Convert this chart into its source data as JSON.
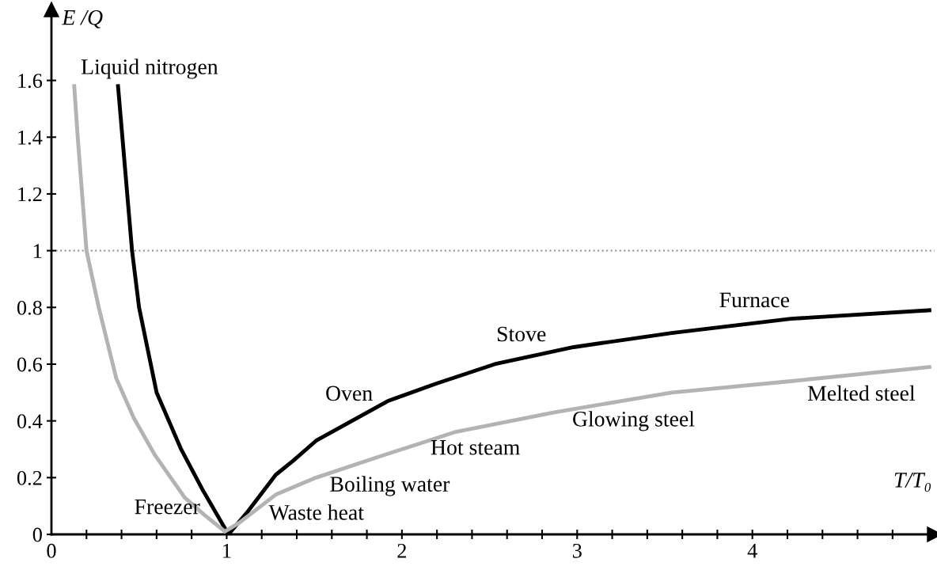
{
  "chart_data": {
    "type": "line",
    "xlabel": "T/T₀",
    "ylabel": "E /Q",
    "xlim": [
      0,
      5.04
    ],
    "ylim": [
      0,
      1.85
    ],
    "xticks": [
      0,
      {
        "value": 0.2,
        "label": null
      },
      {
        "value": 0.4,
        "label": null
      },
      {
        "value": 0.6,
        "label": null
      },
      {
        "value": 0.8,
        "label": null
      },
      1,
      {
        "value": 1.2,
        "label": null
      },
      {
        "value": 1.4,
        "label": null
      },
      {
        "value": 1.6,
        "label": null
      },
      {
        "value": 1.8,
        "label": null
      },
      2,
      {
        "value": 2.2,
        "label": null
      },
      {
        "value": 2.4,
        "label": null
      },
      {
        "value": 2.6,
        "label": null
      },
      {
        "value": 2.8,
        "label": null
      },
      3,
      {
        "value": 3.2,
        "label": null
      },
      {
        "value": 3.4,
        "label": null
      },
      {
        "value": 3.6,
        "label": null
      },
      {
        "value": 3.8,
        "label": null
      },
      4,
      {
        "value": 4.2,
        "label": null
      },
      {
        "value": 4.4,
        "label": null
      },
      {
        "value": 4.6,
        "label": null
      },
      {
        "value": 4.8,
        "label": null
      }
    ],
    "yticks": [
      0,
      0.2,
      0.4,
      0.6,
      0.8,
      1,
      1.2,
      1.4,
      1.6
    ],
    "grid": false,
    "legend": false,
    "marker": "none",
    "line_style": "solid",
    "ref_lines": [
      {
        "axis": "y",
        "value": 1,
        "color": "#999999",
        "line_style": "dotted"
      }
    ],
    "series": [
      {
        "color": "#000000",
        "x": [
          0.38,
          0.46,
          0.5,
          0.6,
          0.74,
          0.86,
          1.01,
          1.12,
          1.28,
          1.38,
          1.51,
          1.92,
          2.19,
          2.53,
          2.98,
          3.54,
          4.22,
          5.01
        ],
        "values": [
          1.58,
          1.0,
          0.8,
          0.5,
          0.3,
          0.16,
          0,
          0.08,
          0.21,
          0.26,
          0.33,
          0.47,
          0.53,
          0.6,
          0.66,
          0.71,
          0.76,
          0.79
        ]
      },
      {
        "color": "#b3b3b3",
        "x": [
          0.13,
          0.15,
          0.2,
          0.27,
          0.37,
          0.47,
          0.59,
          0.76,
          0.87,
          0.99,
          1.07,
          1.28,
          1.51,
          1.85,
          2.3,
          2.87,
          3.54,
          4.22,
          5.01
        ],
        "values": [
          1.58,
          1.4,
          1.0,
          0.8,
          0.55,
          0.41,
          0.28,
          0.13,
          0.07,
          0.01,
          0.04,
          0.14,
          0.2,
          0.27,
          0.36,
          0.43,
          0.5,
          0.54,
          0.59
        ]
      }
    ],
    "annotations": [
      "Liquid nitrogen",
      "Freezer",
      "Waste heat",
      "Boiling water",
      "Hot steam",
      "Glowing steel",
      "Melted steel",
      "Oven",
      "Stove",
      "Furnace"
    ]
  }
}
